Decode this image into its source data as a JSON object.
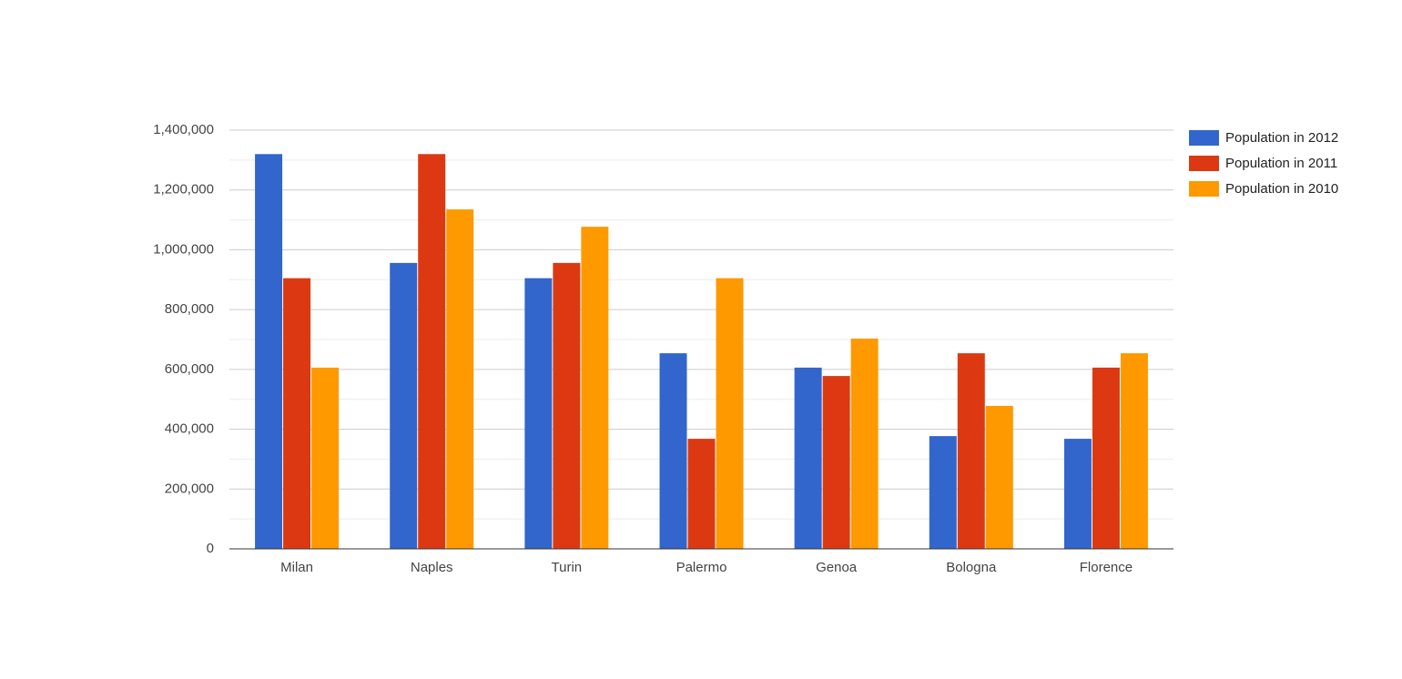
{
  "chart_data": {
    "type": "bar",
    "categories": [
      "Milan",
      "Naples",
      "Turin",
      "Palermo",
      "Genoa",
      "Bologna",
      "Florence"
    ],
    "series": [
      {
        "name": "Population in 2012",
        "color": "#3366cc",
        "values": [
          1320000,
          956000,
          905000,
          654000,
          606000,
          377000,
          368000
        ]
      },
      {
        "name": "Population in 2011",
        "color": "#dc3912",
        "values": [
          905000,
          1320000,
          956000,
          368000,
          578000,
          654000,
          606000
        ]
      },
      {
        "name": "Population in 2010",
        "color": "#ff9900",
        "values": [
          606000,
          1135000,
          1077000,
          905000,
          703000,
          478000,
          654000
        ]
      }
    ],
    "ylim": [
      0,
      1400000
    ],
    "yticks": [
      0,
      {
        "value": 200000,
        "label": "200,000"
      },
      {
        "value": 400000,
        "label": "400,000"
      },
      {
        "value": 600000,
        "label": "600,000"
      },
      {
        "value": 800000,
        "label": "800,000"
      },
      {
        "value": 1000000,
        "label": "1,000,000"
      },
      {
        "value": 1200000,
        "label": "1,200,000"
      },
      {
        "value": 1400000,
        "label": "1,400,000"
      }
    ],
    "grid": true,
    "legend": "right"
  }
}
